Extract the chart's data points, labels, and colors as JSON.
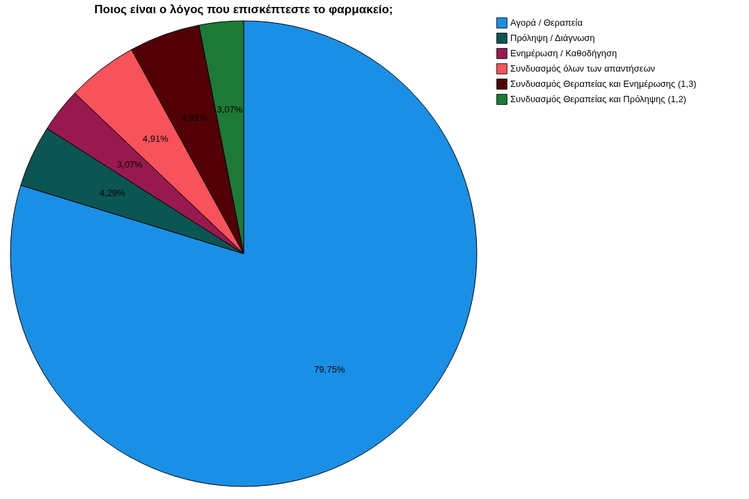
{
  "chart_data": {
    "type": "pie",
    "title": "Ποιος είναι ο λόγος που επισκέπτεστε το φαρμακείο;",
    "categories": [
      "Αγορά / Θεραπεία",
      "Πρόληψη / Διάγνωση",
      "Ενημέρωση / Καθοδήγηση",
      "Συνδυασμός όλων των απαντήσεων",
      "Συνδυασμός Θεραπείας και Ενημέρωσης (1,3)",
      "Συνδυασμός Θεραπείας και Πρόληψης (1,2)"
    ],
    "values": [
      79.75,
      4.29,
      3.07,
      4.91,
      4.91,
      3.07
    ],
    "value_labels": [
      "79,75%",
      "4,29%",
      "3,07%",
      "4,91%",
      "4,91%",
      "3,07%"
    ],
    "colors": [
      "#1a8fe6",
      "#0b5553",
      "#98194f",
      "#f8525a",
      "#520006",
      "#1c7a36"
    ],
    "legend": "top right"
  }
}
